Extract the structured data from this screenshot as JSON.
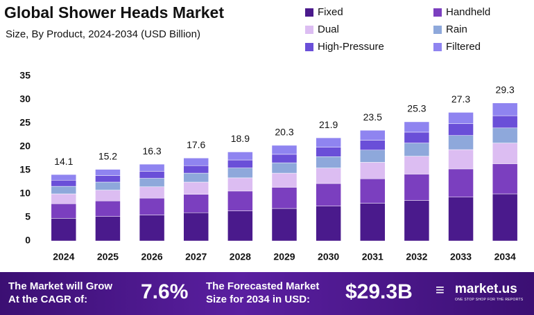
{
  "chart_data": {
    "type": "stacked_bar",
    "title": "Global Shower Heads Market",
    "subtitle": "Size, By Product, 2024-2034 (USD Billion)",
    "categories": [
      "2024",
      "2025",
      "2026",
      "2027",
      "2028",
      "2029",
      "2030",
      "2031",
      "2032",
      "2033",
      "2034"
    ],
    "series": [
      {
        "name": "Fixed",
        "color": "#4a1a8c",
        "values": [
          4.8,
          5.2,
          5.5,
          6.0,
          6.4,
          6.9,
          7.4,
          8.0,
          8.6,
          9.3,
          10.0
        ]
      },
      {
        "name": "Handheld",
        "color": "#7b3fbf",
        "values": [
          3.1,
          3.3,
          3.6,
          3.9,
          4.2,
          4.5,
          4.8,
          5.2,
          5.6,
          6.0,
          6.4
        ]
      },
      {
        "name": "Dual",
        "color": "#dcbdf2",
        "values": [
          2.1,
          2.3,
          2.4,
          2.6,
          2.8,
          3.0,
          3.3,
          3.5,
          3.8,
          4.1,
          4.4
        ]
      },
      {
        "name": "Rain",
        "color": "#8ea8db",
        "values": [
          1.6,
          1.7,
          1.8,
          1.9,
          2.1,
          2.2,
          2.4,
          2.6,
          2.8,
          3.0,
          3.2
        ]
      },
      {
        "name": "High-Pressure",
        "color": "#6a4fd8",
        "values": [
          1.3,
          1.4,
          1.5,
          1.6,
          1.7,
          1.8,
          2.0,
          2.1,
          2.3,
          2.5,
          2.6
        ]
      },
      {
        "name": "Filtered",
        "color": "#8f84f0",
        "values": [
          1.2,
          1.3,
          1.5,
          1.6,
          1.7,
          1.9,
          2.0,
          2.1,
          2.2,
          2.4,
          2.7
        ]
      }
    ],
    "totals": [
      14.1,
      15.2,
      16.3,
      17.6,
      18.9,
      20.3,
      21.9,
      23.5,
      25.3,
      27.3,
      29.3
    ],
    "ylim": [
      0,
      35
    ],
    "yticks": [
      0,
      5,
      10,
      15,
      20,
      25,
      30,
      35
    ],
    "grid": false
  },
  "footer": {
    "cagr_text": [
      "The Market will Grow",
      "At the CAGR of:"
    ],
    "cagr": "7.6%",
    "forecast_text": [
      "The Forecasted Market",
      "Size for 2034 in USD:"
    ],
    "forecast": "$29.3B",
    "brand": "market.us",
    "tagline": "ONE STOP SHOP FOR THE REPORTS"
  }
}
